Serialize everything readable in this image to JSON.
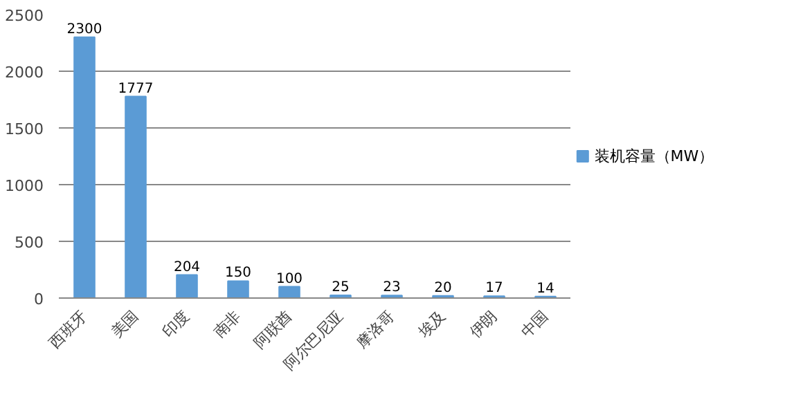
{
  "chart_data": {
    "type": "bar",
    "categories": [
      "西班牙",
      "美国",
      "印度",
      "南非",
      "阿联酋",
      "阿尔巴尼亚",
      "摩洛哥",
      "埃及",
      "伊朗",
      "中国"
    ],
    "series": [
      {
        "name": "装机容量（MW）",
        "color": "#5b9bd5",
        "values": [
          2300,
          1777,
          204,
          150,
          100,
          25,
          23,
          20,
          17,
          14
        ]
      }
    ],
    "ylim": [
      0,
      2500
    ],
    "yticks": [
      0,
      500,
      1000,
      1500,
      2000,
      2500
    ],
    "grid": "y",
    "legend": "right",
    "data_labels": true
  }
}
